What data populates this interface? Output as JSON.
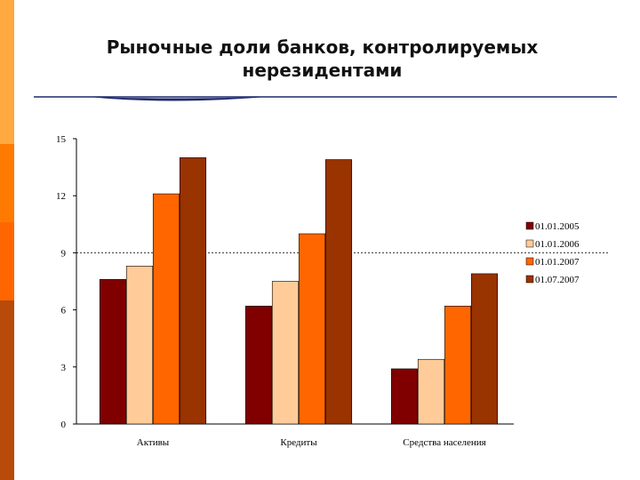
{
  "title_line1": "Рыночные доли банков, контролируемых",
  "title_line2": "нерезидентами",
  "side_stripes": [
    {
      "color": "#FFA940"
    },
    {
      "color": "#FF7A00"
    },
    {
      "color": "#FF6600"
    },
    {
      "color": "#B84A0A"
    }
  ],
  "chart_data": {
    "type": "bar",
    "categories": [
      "Активы",
      "Кредиты",
      "Средства населения"
    ],
    "series": [
      {
        "name": "01.01.2005",
        "values": [
          7.6,
          6.2,
          2.9
        ],
        "color": "#800000"
      },
      {
        "name": "01.01.2006",
        "values": [
          8.3,
          7.5,
          3.4
        ],
        "color": "#FFCC99"
      },
      {
        "name": "01.01.2007",
        "values": [
          12.1,
          10.0,
          6.2
        ],
        "color": "#FF6600"
      },
      {
        "name": "01.07.2007",
        "values": [
          14.0,
          13.9,
          7.9
        ],
        "color": "#993300"
      }
    ],
    "ylim": [
      0,
      15
    ],
    "yticks": [
      "0",
      "3",
      "6",
      "9",
      "12",
      "15"
    ],
    "reference_line": 9,
    "legend_position": "right",
    "grid": false
  }
}
